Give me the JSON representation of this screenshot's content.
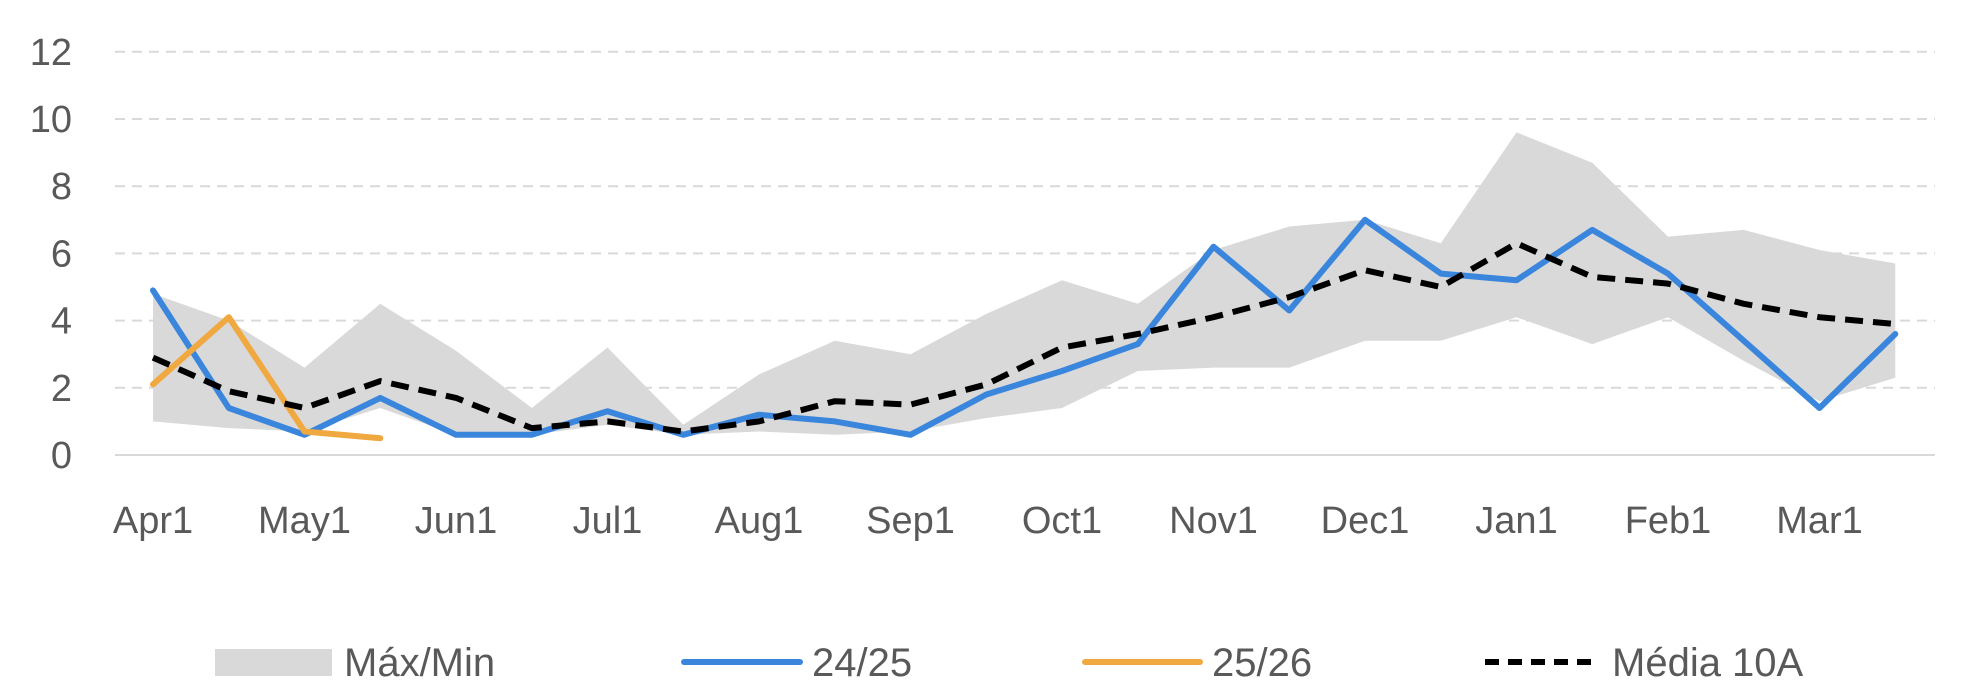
{
  "chart_data": {
    "type": "line",
    "x_categories": [
      "Apr1",
      "May1",
      "Jun1",
      "Jul1",
      "Aug1",
      "Sep1",
      "Oct1",
      "Nov1",
      "Dec1",
      "Jan1",
      "Feb1",
      "Mar1"
    ],
    "y_ticks": [
      "0",
      "2",
      "4",
      "6",
      "8",
      "10",
      "12"
    ],
    "ylim": [
      0,
      12
    ],
    "grid": "horizontal dashed",
    "legend_position": "bottom",
    "band": {
      "name": "Máx/Min",
      "color": "#d9d9d9",
      "x": [
        0,
        0.5,
        1,
        1.5,
        2,
        2.5,
        3,
        3.5,
        4,
        4.5,
        5,
        5.5,
        6,
        6.5,
        7,
        7.5,
        8,
        8.5,
        9,
        9.5,
        10,
        10.5,
        11,
        11.5
      ],
      "max": [
        4.8,
        4.0,
        2.6,
        4.5,
        3.1,
        1.4,
        3.2,
        0.9,
        2.4,
        3.4,
        3.0,
        4.2,
        5.2,
        4.5,
        6.1,
        6.8,
        7.0,
        6.3,
        9.6,
        8.7,
        6.5,
        6.7,
        6.1,
        5.7
      ],
      "min": [
        1.0,
        0.8,
        0.7,
        1.4,
        0.6,
        0.6,
        0.9,
        0.6,
        0.7,
        0.6,
        0.7,
        1.1,
        1.4,
        2.5,
        2.6,
        2.6,
        3.4,
        3.4,
        4.1,
        3.3,
        4.1,
        2.8,
        1.6,
        2.3
      ]
    },
    "series": [
      {
        "name": "24/25",
        "color": "#3a86dc",
        "dash": "solid",
        "x": [
          0,
          0.5,
          1,
          1.5,
          2,
          2.5,
          3,
          3.5,
          4,
          4.5,
          5,
          5.5,
          6,
          6.5,
          7,
          7.5,
          8,
          8.5,
          9,
          9.5,
          10,
          10.5,
          11,
          11.5
        ],
        "values": [
          4.9,
          1.4,
          0.6,
          1.7,
          0.6,
          0.6,
          1.3,
          0.6,
          1.2,
          1.0,
          0.6,
          1.8,
          2.5,
          3.3,
          6.2,
          4.3,
          7.0,
          5.4,
          5.2,
          6.7,
          5.4,
          3.4,
          1.4,
          3.6
        ]
      },
      {
        "name": "25/26",
        "color": "#f0a840",
        "dash": "solid",
        "x": [
          0,
          0.5,
          1,
          1.5
        ],
        "values": [
          2.1,
          4.1,
          0.7,
          0.5
        ]
      },
      {
        "name": "Média 10A",
        "color": "#000000",
        "dash": "dashed",
        "x": [
          0,
          0.5,
          1,
          1.5,
          2,
          2.5,
          3,
          3.5,
          4,
          4.5,
          5,
          5.5,
          6,
          6.5,
          7,
          7.5,
          8,
          8.5,
          9,
          9.5,
          10,
          10.5,
          11,
          11.5
        ],
        "values": [
          2.9,
          1.9,
          1.4,
          2.2,
          1.7,
          0.8,
          1.0,
          0.7,
          1.0,
          1.6,
          1.5,
          2.1,
          3.2,
          3.6,
          4.1,
          4.7,
          5.5,
          5.0,
          6.3,
          5.3,
          5.1,
          4.5,
          4.1,
          3.9
        ]
      }
    ]
  }
}
